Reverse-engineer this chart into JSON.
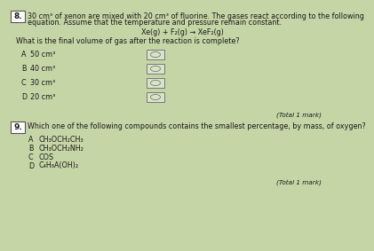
{
  "bg_color": "#c5d5a5",
  "text_color": "#1a1a1a",
  "q8_number": "8.",
  "q8_intro_line1": "30 cm³ of xenon are mixed with 20 cm³ of fluorine. The gases react according to the following",
  "q8_intro_line2": "equation. Assume that the temperature and pressure remain constant.",
  "q8_equation": "Xe(g) + F₂(g) → XeF₂(g)",
  "q8_question": "What is the final volume of gas after the reaction is complete?",
  "q8_options": [
    [
      "A",
      "50 cm³"
    ],
    [
      "B",
      "40 cm³"
    ],
    [
      "C",
      "30 cm³"
    ],
    [
      "D",
      "20 cm³"
    ]
  ],
  "q8_mark": "(Total 1 mark)",
  "q9_number": "9.",
  "q9_question": "Which one of the following compounds contains the smallest percentage, by mass, of oxygen?",
  "q9_options": [
    [
      "A",
      "CH₃OCH₂CH₃"
    ],
    [
      "B",
      "CH₃OCH₂NH₂"
    ],
    [
      "C",
      "COS"
    ],
    [
      "D",
      "C₄H₈A(OH)₂"
    ]
  ],
  "q9_mark": "(Total 1 mark)",
  "box_color": "#e0e8d0",
  "answer_box_color": "#d8e4c8",
  "answer_box_edge": "#777777"
}
